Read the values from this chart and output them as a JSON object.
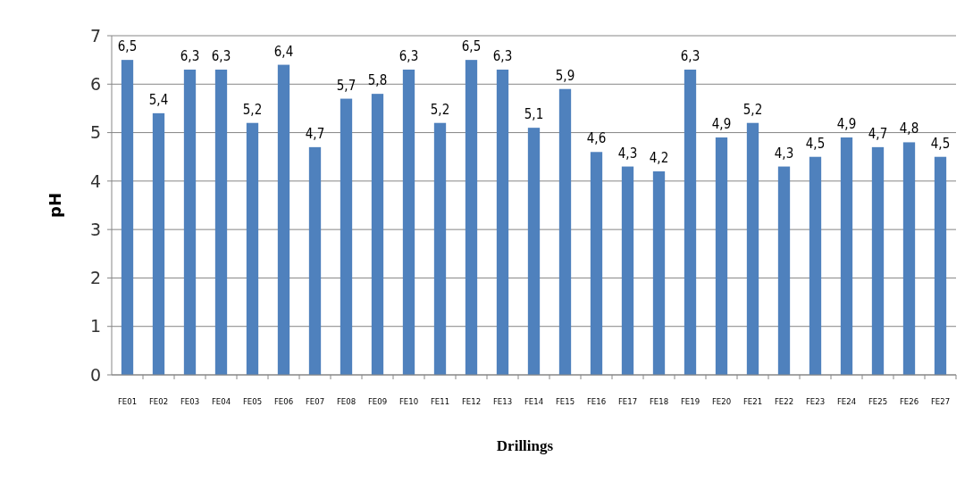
{
  "chart_data": {
    "type": "bar",
    "xlabel": "Drillings",
    "ylabel": "pH",
    "categories": [
      "FE01",
      "FE02",
      "FE03",
      "FE04",
      "FE05",
      "FE06",
      "FE07",
      "FE08",
      "FE09",
      "FE10",
      "FE11",
      "FE12",
      "FE13",
      "FE14",
      "FE15",
      "FE16",
      "FE17",
      "FE18",
      "FE19",
      "FE20",
      "FE21",
      "FE22",
      "FE23",
      "FE24",
      "FE25",
      "FE26",
      "FE27"
    ],
    "values": [
      6.5,
      5.4,
      6.3,
      6.3,
      5.2,
      6.4,
      4.7,
      5.7,
      5.8,
      6.3,
      5.2,
      6.5,
      6.3,
      5.1,
      5.9,
      4.6,
      4.3,
      4.2,
      6.3,
      4.9,
      5.2,
      4.3,
      4.5,
      4.9,
      4.7,
      4.8,
      4.5
    ],
    "value_labels": [
      "6,5",
      "5,4",
      "6,3",
      "6,3",
      "5,2",
      "6,4",
      "4,7",
      "5,7",
      "5,8",
      "6,3",
      "5,2",
      "6,5",
      "6,3",
      "5,1",
      "5,9",
      "4,6",
      "4,3",
      "4,2",
      "6,3",
      "4,9",
      "5,2",
      "4,3",
      "4,5",
      "4,9",
      "4,7",
      "4,8",
      "4,5"
    ],
    "color": "#4f81bd",
    "ylim": [
      0,
      7
    ],
    "yticks": [
      0,
      1,
      2,
      3,
      4,
      5,
      6,
      7
    ],
    "grid": true
  }
}
